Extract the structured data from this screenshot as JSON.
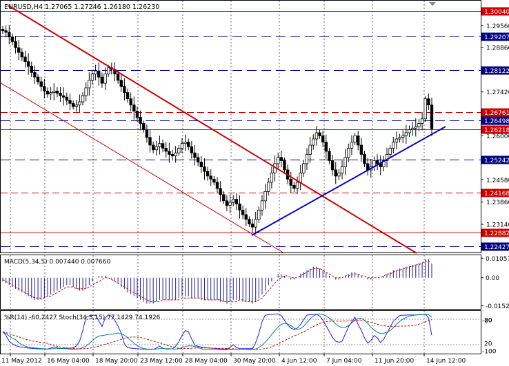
{
  "header": {
    "symbol_line": "EURUSD,H4  1.27065 1.27246 1.26180 1.26230"
  },
  "colors": {
    "candle": "#000000",
    "channel_red": "#cc0000",
    "trend_blue": "#0000cc",
    "hline_red": "#cc0000",
    "hline_blue": "#000099",
    "label_red_bg": "#cc0000",
    "label_blue_bg": "#000080",
    "label_text": "#ffffff",
    "macd_hist": "#1a1a99",
    "macd_signal": "#cc0000",
    "wpr_line": "#1a1aff",
    "stoch_main": "#008080",
    "stoch_signal": "#cc0000"
  },
  "chart_data": [
    {
      "type": "candlestick",
      "title": "EURUSD,H4",
      "ohlc_readout": {
        "open": "1.27065",
        "high": "1.27246",
        "low": "1.26180",
        "close": "1.26230"
      },
      "ylim": [
        1.2225,
        1.3035
      ],
      "price_ticks": [
        "1.29560",
        "1.28860",
        "1.27420",
        "1.26000",
        "1.24580",
        "1.23860",
        "1.23140"
      ],
      "x_ticks": [
        "11 May 2012",
        "16 May 04:00",
        "18 May 20:00",
        "23 May 12:00",
        "28 May 04:00",
        "30 May 20:00",
        "4 Jun 12:00",
        "7 Jun 04:00",
        "11 Jun 20:00",
        "14 Jun 12:00"
      ],
      "horizontal_levels": [
        {
          "value": 1.3004,
          "label": "1.30040",
          "style": "red-solid"
        },
        {
          "value": 1.29207,
          "label": "1.29207",
          "style": "blue-dash"
        },
        {
          "value": 1.28122,
          "label": "1.28122",
          "style": "blue-dash"
        },
        {
          "value": 1.26761,
          "label": "1.26761",
          "style": "red-dash"
        },
        {
          "value": 1.26498,
          "label": "1.26498",
          "style": "blue-dash"
        },
        {
          "value": 1.26218,
          "label": "1.26218",
          "style": "red-solid"
        },
        {
          "value": 1.25242,
          "label": "1.25242",
          "style": "blue-dash"
        },
        {
          "value": 1.24168,
          "label": "1.24168",
          "style": "red-dash"
        },
        {
          "value": 1.22882,
          "label": "1.22882",
          "style": "red-solid"
        },
        {
          "value": 1.22427,
          "label": "1.22427",
          "style": "blue-dash"
        }
      ],
      "closes": [
        1.294,
        1.2935,
        1.292,
        1.2905,
        1.2885,
        1.287,
        1.2855,
        1.284,
        1.2825,
        1.2805,
        1.279,
        1.2775,
        1.276,
        1.2745,
        1.2735,
        1.274,
        1.2745,
        1.2738,
        1.273,
        1.2725,
        1.2715,
        1.2705,
        1.2695,
        1.27,
        1.271,
        1.273,
        1.2755,
        1.278,
        1.28,
        1.281,
        1.279,
        1.277,
        1.28,
        1.282,
        1.2815,
        1.28,
        1.278,
        1.276,
        1.274,
        1.272,
        1.27,
        1.268,
        1.266,
        1.264,
        1.262,
        1.2595,
        1.257,
        1.2555,
        1.2565,
        1.2575,
        1.256,
        1.255,
        1.254,
        1.2535,
        1.2545,
        1.256,
        1.2575,
        1.258,
        1.2565,
        1.2545,
        1.253,
        1.2515,
        1.25,
        1.2485,
        1.247,
        1.246,
        1.245,
        1.243,
        1.241,
        1.239,
        1.2375,
        1.2385,
        1.2395,
        1.238,
        1.236,
        1.2345,
        1.233,
        1.2315,
        1.2305,
        1.233,
        1.236,
        1.239,
        1.242,
        1.245,
        1.248,
        1.251,
        1.253,
        1.252,
        1.249,
        1.246,
        1.244,
        1.243,
        1.245,
        1.248,
        1.251,
        1.254,
        1.257,
        1.259,
        1.261,
        1.26,
        1.258,
        1.255,
        1.252,
        1.249,
        1.247,
        1.248,
        1.25,
        1.253,
        1.256,
        1.258,
        1.26,
        1.257,
        1.254,
        1.251,
        1.249,
        1.25,
        1.252,
        1.251,
        1.25,
        1.252,
        1.254,
        1.256,
        1.258,
        1.259,
        1.2595,
        1.26,
        1.261,
        1.262,
        1.2625,
        1.263,
        1.264,
        1.2655,
        1.272,
        1.27,
        1.2623
      ]
    },
    {
      "type": "bar",
      "title": "MACD(5,34,5) 0.007440 0.007660",
      "ylim": [
        -0.0165,
        0.0118
      ],
      "y_ticks": [
        "0.010575",
        "0.00",
        "-0.01522"
      ],
      "histogram": [
        -0.002,
        -0.003,
        -0.004,
        -0.005,
        -0.006,
        -0.007,
        -0.008,
        -0.009,
        -0.01,
        -0.011,
        -0.012,
        -0.012,
        -0.012,
        -0.011,
        -0.01,
        -0.009,
        -0.008,
        -0.007,
        -0.006,
        -0.005,
        -0.004,
        -0.004,
        -0.005,
        -0.006,
        -0.007,
        -0.007,
        -0.006,
        -0.004,
        -0.002,
        0.0,
        0.001,
        0.001,
        0.001,
        0.0,
        -0.001,
        -0.002,
        -0.003,
        -0.005,
        -0.006,
        -0.008,
        -0.009,
        -0.01,
        -0.011,
        -0.012,
        -0.013,
        -0.014,
        -0.014,
        -0.014,
        -0.013,
        -0.012,
        -0.012,
        -0.012,
        -0.012,
        -0.012,
        -0.012,
        -0.011,
        -0.01,
        -0.01,
        -0.01,
        -0.011,
        -0.011,
        -0.011,
        -0.012,
        -0.012,
        -0.012,
        -0.012,
        -0.012,
        -0.012,
        -0.013,
        -0.013,
        -0.014,
        -0.013,
        -0.012,
        -0.012,
        -0.012,
        -0.013,
        -0.013,
        -0.013,
        -0.014,
        -0.013,
        -0.011,
        -0.009,
        -0.007,
        -0.004,
        -0.002,
        0.0,
        0.002,
        0.002,
        0.001,
        0.0,
        -0.001,
        -0.001,
        0.0,
        0.002,
        0.003,
        0.004,
        0.005,
        0.006,
        0.006,
        0.005,
        0.004,
        0.003,
        0.001,
        0.0,
        -0.001,
        -0.001,
        0.0,
        0.001,
        0.002,
        0.003,
        0.003,
        0.002,
        0.001,
        0.0,
        -0.001,
        -0.001,
        0.0,
        0.0,
        0.0,
        0.001,
        0.002,
        0.003,
        0.004,
        0.004,
        0.005,
        0.005,
        0.006,
        0.006,
        0.007,
        0.007,
        0.008,
        0.008,
        0.01,
        0.01,
        0.0074
      ],
      "signal": [
        -0.001,
        -0.002,
        -0.003,
        -0.004,
        -0.005,
        -0.006,
        -0.007,
        -0.008,
        -0.009,
        -0.01,
        -0.011,
        -0.011,
        -0.011,
        -0.011,
        -0.01,
        -0.01,
        -0.009,
        -0.008,
        -0.007,
        -0.006,
        -0.005,
        -0.005,
        -0.005,
        -0.006,
        -0.006,
        -0.006,
        -0.006,
        -0.005,
        -0.004,
        -0.003,
        -0.002,
        -0.001,
        0.0,
        0.0,
        -0.001,
        -0.002,
        -0.003,
        -0.004,
        -0.005,
        -0.006,
        -0.007,
        -0.008,
        -0.009,
        -0.01,
        -0.011,
        -0.012,
        -0.013,
        -0.013,
        -0.013,
        -0.013,
        -0.012,
        -0.012,
        -0.012,
        -0.012,
        -0.012,
        -0.012,
        -0.011,
        -0.011,
        -0.011,
        -0.011,
        -0.011,
        -0.011,
        -0.011,
        -0.012,
        -0.012,
        -0.012,
        -0.012,
        -0.012,
        -0.012,
        -0.013,
        -0.013,
        -0.013,
        -0.013,
        -0.013,
        -0.012,
        -0.012,
        -0.013,
        -0.013,
        -0.013,
        -0.013,
        -0.012,
        -0.011,
        -0.009,
        -0.007,
        -0.005,
        -0.003,
        -0.001,
        0.0,
        0.001,
        0.001,
        0.0,
        0.0,
        0.0,
        0.001,
        0.002,
        0.003,
        0.004,
        0.005,
        0.005,
        0.005,
        0.004,
        0.003,
        0.002,
        0.001,
        0.0,
        0.0,
        0.0,
        0.001,
        0.001,
        0.002,
        0.002,
        0.002,
        0.001,
        0.001,
        0.0,
        0.0,
        0.0,
        0.0,
        0.0,
        0.001,
        0.002,
        0.002,
        0.003,
        0.004,
        0.004,
        0.005,
        0.005,
        0.006,
        0.006,
        0.007,
        0.007,
        0.008,
        0.009,
        0.009,
        0.0077
      ]
    },
    {
      "type": "line",
      "title": "%R(14) -60.2427  Stoch(34,5,15) 77.1429 74.1926",
      "ylim": [
        -100,
        0
      ],
      "y_ticks_left": [
        "-20",
        "-100"
      ],
      "y_ticks_right": [
        "80",
        "20"
      ]
    }
  ]
}
